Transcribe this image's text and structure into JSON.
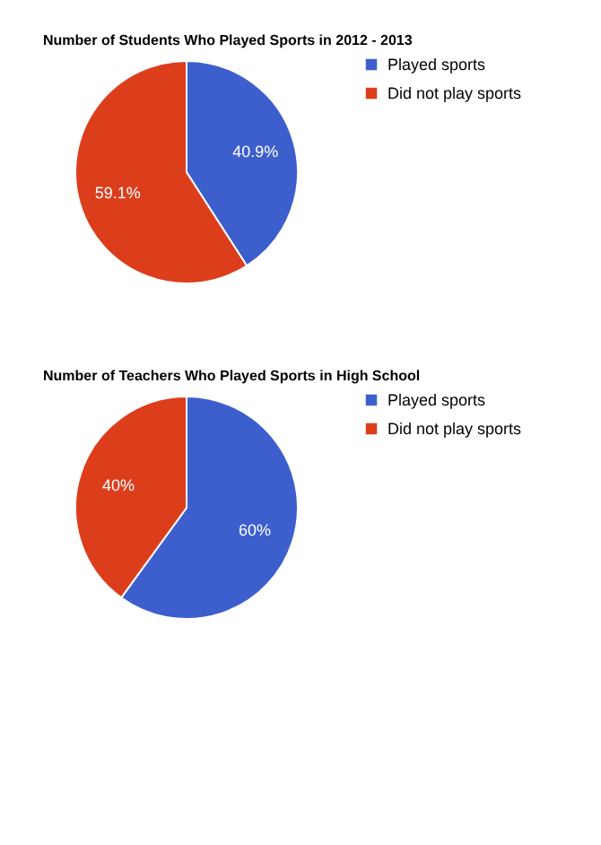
{
  "chart_data": [
    {
      "type": "pie",
      "title": "Number of Students Who Played Sports in 2012 - 2013",
      "categories": [
        "Played sports",
        "Did not play sports"
      ],
      "values": [
        40.9,
        59.1
      ],
      "colors": [
        "#3d5fcd",
        "#dc3e1c"
      ],
      "value_labels": [
        "40.9%",
        "59.1%"
      ],
      "legend": "right"
    },
    {
      "type": "pie",
      "title": "Number of Teachers Who Played Sports in High School",
      "categories": [
        "Played sports",
        "Did not play sports"
      ],
      "values": [
        60,
        40
      ],
      "colors": [
        "#3d5fcd",
        "#dc3e1c"
      ],
      "value_labels": [
        "60%",
        "40%"
      ],
      "legend": "right"
    }
  ]
}
